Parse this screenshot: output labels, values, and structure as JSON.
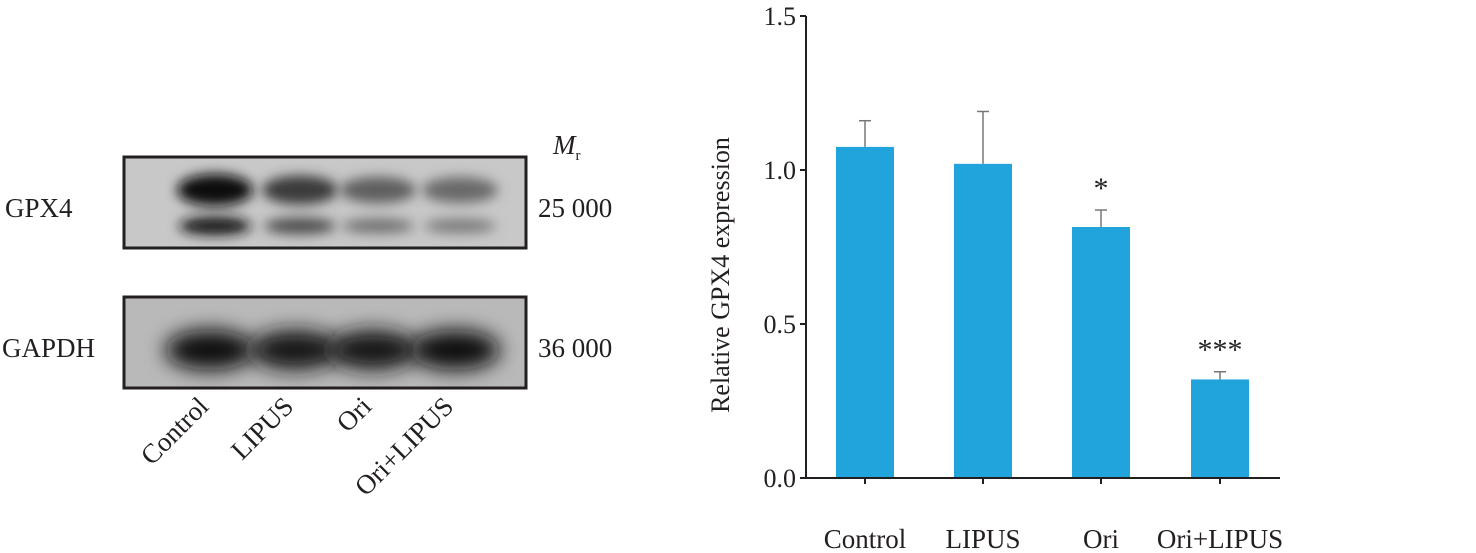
{
  "blot": {
    "rows": [
      {
        "label": "GPX4",
        "mr": "25 000"
      },
      {
        "label": "GAPDH",
        "mr": "36 000"
      }
    ],
    "mr_label": "M",
    "mr_sub": "r",
    "lanes": [
      "Control",
      "LIPUS",
      "Ori",
      "Ori+LIPUS"
    ],
    "gpx4_intensity": [
      1.0,
      0.75,
      0.55,
      0.5
    ],
    "gapdh_intensity": [
      0.95,
      0.9,
      0.9,
      0.95
    ]
  },
  "chart_data": {
    "type": "bar",
    "title": "",
    "xlabel": "",
    "ylabel": "Relative GPX4 expression",
    "categories": [
      "Control",
      "LIPUS",
      "Ori",
      "Ori+LIPUS"
    ],
    "values": [
      1.075,
      1.02,
      0.815,
      0.32
    ],
    "error_upper": [
      0.085,
      0.17,
      0.055,
      0.025
    ],
    "annotations": [
      "",
      "",
      "*",
      "***"
    ],
    "ylim": [
      0,
      1.5
    ],
    "yticks": [
      "0.0",
      "0.5",
      "1.0",
      "1.5"
    ],
    "yticks_values": [
      0,
      0.5,
      1.0,
      1.5
    ],
    "bar_color": "#21a3db",
    "grid": false
  }
}
